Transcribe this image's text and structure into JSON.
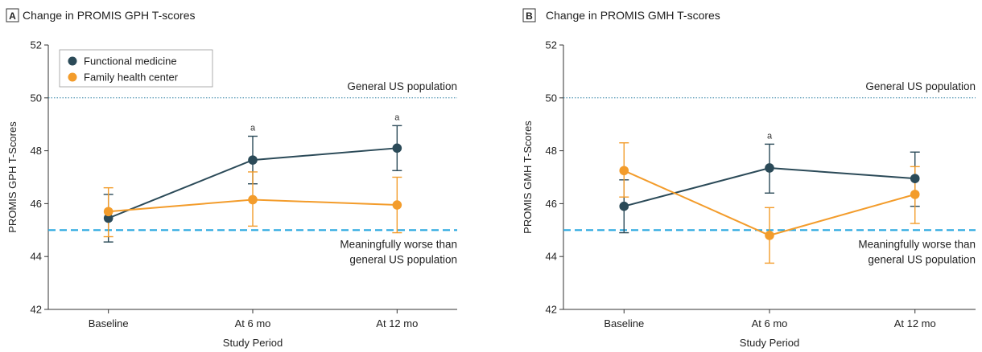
{
  "chart_data": [
    {
      "type": "line",
      "panel_letter": "A",
      "title": "Change in PROMIS GPH T-scores",
      "xlabel": "Study Period",
      "ylabel": "PROMIS GPH T-Scores",
      "categories": [
        "Baseline",
        "At 6 mo",
        "At 12 mo"
      ],
      "ylim": [
        42,
        52
      ],
      "yticks": [
        42,
        44,
        46,
        48,
        50,
        52
      ],
      "grid": false,
      "legend_position": "top-left",
      "series": [
        {
          "name": "Functional medicine",
          "color": "#2b4a58",
          "values": [
            45.45,
            47.65,
            48.1
          ],
          "lower": [
            44.55,
            46.75,
            47.25
          ],
          "upper": [
            46.35,
            48.55,
            48.95
          ]
        },
        {
          "name": "Family health center",
          "color": "#f39c2b",
          "values": [
            45.7,
            46.15,
            45.95
          ],
          "lower": [
            44.75,
            45.15,
            44.9
          ],
          "upper": [
            46.6,
            47.2,
            47.0
          ]
        }
      ],
      "significance_marks": [
        {
          "category_index": 1,
          "label": "a"
        },
        {
          "category_index": 2,
          "label": "a"
        }
      ],
      "reference_lines": [
        {
          "value": 50,
          "style": "dotted",
          "color": "#2b7fa3",
          "label": [
            "General US population"
          ]
        },
        {
          "value": 45,
          "style": "dashed",
          "color": "#29a8e0",
          "label": [
            "Meaningfully worse than",
            "general US population"
          ]
        }
      ]
    },
    {
      "type": "line",
      "panel_letter": "B",
      "title": "Change in PROMIS GMH T-scores",
      "xlabel": "Study Period",
      "ylabel": "PROMIS GMH T-Scores",
      "categories": [
        "Baseline",
        "At 6 mo",
        "At 12 mo"
      ],
      "ylim": [
        42,
        52
      ],
      "yticks": [
        42,
        44,
        46,
        48,
        50,
        52
      ],
      "grid": false,
      "legend_position": "none",
      "series": [
        {
          "name": "Functional medicine",
          "color": "#2b4a58",
          "values": [
            45.9,
            47.35,
            46.95
          ],
          "lower": [
            44.9,
            46.4,
            45.9
          ],
          "upper": [
            46.9,
            48.25,
            47.95
          ]
        },
        {
          "name": "Family health center",
          "color": "#f39c2b",
          "values": [
            47.25,
            44.8,
            46.35
          ],
          "lower": [
            46.25,
            43.75,
            45.25
          ],
          "upper": [
            48.3,
            45.85,
            47.4
          ]
        }
      ],
      "significance_marks": [
        {
          "category_index": 1,
          "label": "a"
        }
      ],
      "reference_lines": [
        {
          "value": 50,
          "style": "dotted",
          "color": "#2b7fa3",
          "label": [
            "General US population"
          ]
        },
        {
          "value": 45,
          "style": "dashed",
          "color": "#29a8e0",
          "label": [
            "Meaningfully worse than",
            "general US population"
          ]
        }
      ]
    }
  ]
}
